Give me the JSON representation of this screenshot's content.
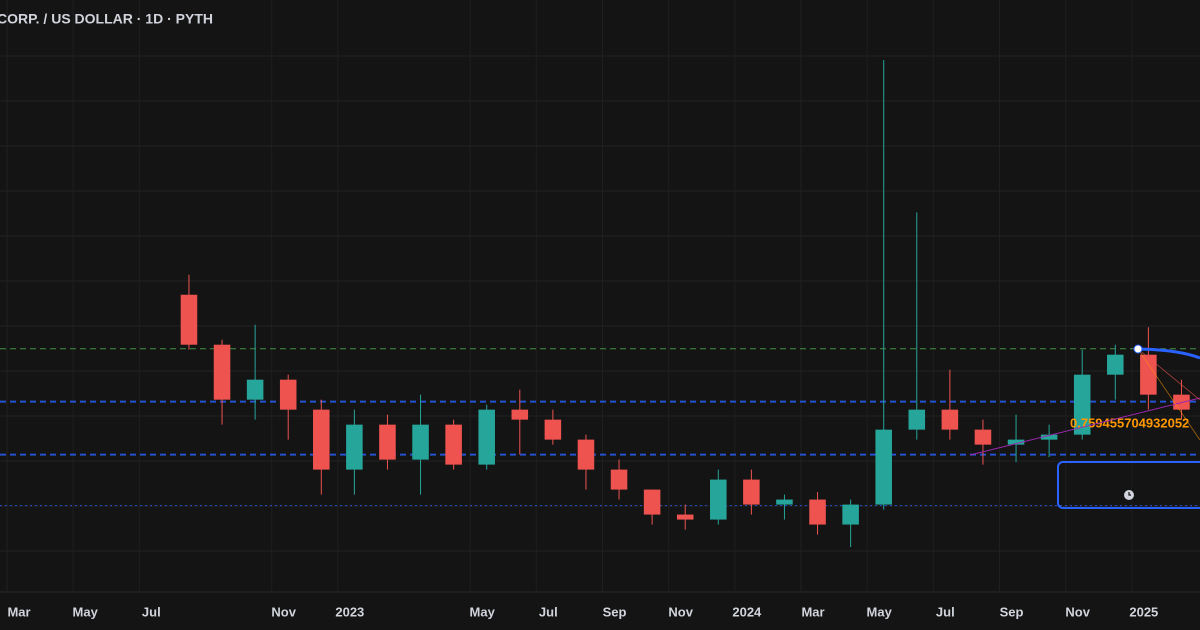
{
  "chart_data": {
    "type": "candlestick",
    "title": "CORP. / US DOLLAR · 1D · PYTH",
    "x": [
      "2022-08",
      "2022-09",
      "2022-10",
      "2022-11",
      "2022-12",
      "2023-01",
      "2023-02",
      "2023-03",
      "2023-04",
      "2023-05",
      "2023-06",
      "2023-07",
      "2023-08",
      "2023-09",
      "2023-10",
      "2023-11",
      "2023-12",
      "2024-01",
      "2024-02",
      "2024-03",
      "2024-04",
      "2024-05",
      "2024-06",
      "2024-07",
      "2024-08",
      "2024-09",
      "2024-10",
      "2024-11",
      "2024-12",
      "2025-01",
      "2025-02"
    ],
    "open": [
      1.28,
      1.08,
      0.86,
      0.94,
      0.82,
      0.58,
      0.76,
      0.62,
      0.76,
      0.6,
      0.82,
      0.78,
      0.7,
      0.58,
      0.5,
      0.4,
      0.38,
      0.54,
      0.44,
      0.46,
      0.36,
      0.44,
      0.74,
      0.82,
      0.74,
      0.68,
      0.7,
      0.72,
      0.96,
      1.04,
      0.88
    ],
    "high": [
      1.36,
      1.1,
      1.16,
      0.96,
      0.86,
      0.82,
      0.8,
      0.88,
      0.78,
      0.84,
      0.9,
      0.82,
      0.72,
      0.62,
      0.5,
      0.44,
      0.58,
      0.58,
      0.48,
      0.49,
      0.46,
      2.22,
      1.61,
      0.98,
      0.78,
      0.8,
      0.76,
      1.06,
      1.08,
      1.15,
      0.94
    ],
    "low": [
      1.06,
      0.76,
      0.78,
      0.7,
      0.48,
      0.48,
      0.58,
      0.48,
      0.58,
      0.58,
      0.64,
      0.68,
      0.5,
      0.46,
      0.36,
      0.34,
      0.36,
      0.4,
      0.38,
      0.32,
      0.27,
      0.42,
      0.7,
      0.7,
      0.6,
      0.61,
      0.63,
      0.7,
      0.86,
      0.82,
      0.78
    ],
    "close": [
      1.08,
      0.86,
      0.94,
      0.82,
      0.58,
      0.76,
      0.62,
      0.76,
      0.6,
      0.82,
      0.78,
      0.7,
      0.58,
      0.5,
      0.4,
      0.38,
      0.54,
      0.44,
      0.46,
      0.36,
      0.44,
      0.74,
      0.82,
      0.74,
      0.68,
      0.7,
      0.72,
      0.96,
      1.04,
      0.88,
      0.82
    ],
    "up_color": "#26a69a",
    "down_color": "#ef5350",
    "xlim": [
      "2022-03",
      "2025-03"
    ],
    "ylim": [
      0.09,
      2.46
    ],
    "xticks": [
      {
        "value": "2022-03",
        "label": "Mar"
      },
      {
        "value": "2022-05",
        "label": "May"
      },
      {
        "value": "2022-07",
        "label": "Jul"
      },
      {
        "value": "2022-11",
        "label": "Nov"
      },
      {
        "value": "2023-01",
        "label": "2023"
      },
      {
        "value": "2023-05",
        "label": "May"
      },
      {
        "value": "2023-07",
        "label": "Jul"
      },
      {
        "value": "2023-09",
        "label": "Sep"
      },
      {
        "value": "2023-11",
        "label": "Nov"
      },
      {
        "value": "2024-01",
        "label": "2024"
      },
      {
        "value": "2024-03",
        "label": "Mar"
      },
      {
        "value": "2024-05",
        "label": "May"
      },
      {
        "value": "2024-07",
        "label": "Jul"
      },
      {
        "value": "2024-09",
        "label": "Sep"
      },
      {
        "value": "2024-11",
        "label": "Nov"
      },
      {
        "value": "2025-01",
        "label": "2025"
      }
    ],
    "hlines": [
      {
        "value": 1.064,
        "color": "#4caf50",
        "style": "dashed"
      },
      {
        "value": 0.852,
        "color": "#2962ff",
        "style": "dashed"
      },
      {
        "value": 0.64,
        "color": "#2962ff",
        "style": "dashed"
      },
      {
        "value": 0.436,
        "color": "#2962ff",
        "style": "dotted"
      }
    ],
    "annotation": "0.759455704932052",
    "annotation_color": "#ff9800"
  }
}
